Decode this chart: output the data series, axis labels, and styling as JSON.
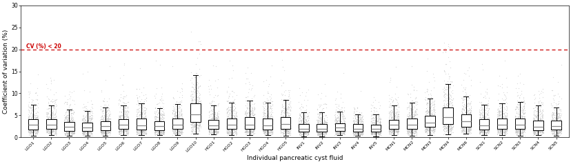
{
  "categories": [
    "LGO1",
    "LGO2",
    "LGO3",
    "LGO4",
    "LGO5",
    "LGO6",
    "LGO7",
    "LGO8",
    "LGO9",
    "LGO10",
    "HGO1",
    "HGO2",
    "HGO3",
    "HGO4",
    "HGO5",
    "INV1",
    "INV2",
    "INV3",
    "INV4",
    "INV5",
    "MCN1",
    "MCN2",
    "MCN3",
    "MCN4",
    "MCN6",
    "SCN1",
    "SCN2",
    "SCN3",
    "SCN4",
    "SCN5"
  ],
  "cv_threshold": 20,
  "ylabel": "Coefficient of variation (%)",
  "xlabel": "Individual pancreatic cyst fluid",
  "annotation_text": "CV (%) < 20",
  "annotation_color": "#cc0000",
  "ylim": [
    0,
    30
  ],
  "yticks": [
    0,
    5,
    10,
    15,
    20,
    25,
    30
  ],
  "box_facecolor": "white",
  "box_edgecolor": "black",
  "median_color": "#888888",
  "whisker_color": "black",
  "flier_marker": "o",
  "flier_color": "#bbbbbb",
  "background_color": "white",
  "seed": 42,
  "box_params": [
    {
      "q1": 1.5,
      "median": 2.8,
      "q3": 4.2,
      "wl": 0.2,
      "wh": 7.0
    },
    {
      "q1": 1.5,
      "median": 2.8,
      "q3": 4.2,
      "wl": 0.2,
      "wh": 7.0
    },
    {
      "q1": 1.2,
      "median": 2.2,
      "q3": 3.5,
      "wl": 0.1,
      "wh": 6.5
    },
    {
      "q1": 1.2,
      "median": 2.2,
      "q3": 3.8,
      "wl": 0.1,
      "wh": 6.0
    },
    {
      "q1": 1.5,
      "median": 2.5,
      "q3": 4.0,
      "wl": 0.2,
      "wh": 7.0
    },
    {
      "q1": 1.5,
      "median": 2.8,
      "q3": 4.2,
      "wl": 0.2,
      "wh": 7.0
    },
    {
      "q1": 1.8,
      "median": 2.8,
      "q3": 4.5,
      "wl": 0.3,
      "wh": 7.5
    },
    {
      "q1": 1.5,
      "median": 2.5,
      "q3": 4.0,
      "wl": 0.2,
      "wh": 7.0
    },
    {
      "q1": 1.8,
      "median": 3.0,
      "q3": 4.8,
      "wl": 0.3,
      "wh": 8.0
    },
    {
      "q1": 3.0,
      "median": 5.2,
      "q3": 7.5,
      "wl": 1.0,
      "wh": 10.5
    },
    {
      "q1": 1.5,
      "median": 2.8,
      "q3": 4.2,
      "wl": 0.2,
      "wh": 7.0
    },
    {
      "q1": 1.8,
      "median": 3.0,
      "q3": 4.5,
      "wl": 0.3,
      "wh": 7.5
    },
    {
      "q1": 1.8,
      "median": 3.0,
      "q3": 5.0,
      "wl": 0.3,
      "wh": 8.0
    },
    {
      "q1": 1.5,
      "median": 2.8,
      "q3": 4.2,
      "wl": 0.2,
      "wh": 7.0
    },
    {
      "q1": 1.8,
      "median": 3.0,
      "q3": 4.5,
      "wl": 0.3,
      "wh": 8.0
    },
    {
      "q1": 1.0,
      "median": 2.0,
      "q3": 3.2,
      "wl": 0.1,
      "wh": 5.5
    },
    {
      "q1": 1.0,
      "median": 2.0,
      "q3": 3.2,
      "wl": 0.1,
      "wh": 5.5
    },
    {
      "q1": 1.2,
      "median": 2.2,
      "q3": 3.5,
      "wl": 0.1,
      "wh": 6.0
    },
    {
      "q1": 1.0,
      "median": 2.0,
      "q3": 3.0,
      "wl": 0.1,
      "wh": 5.0
    },
    {
      "q1": 1.0,
      "median": 2.0,
      "q3": 3.2,
      "wl": 0.1,
      "wh": 5.5
    },
    {
      "q1": 1.5,
      "median": 2.8,
      "q3": 4.2,
      "wl": 0.2,
      "wh": 7.0
    },
    {
      "q1": 1.8,
      "median": 3.0,
      "q3": 4.5,
      "wl": 0.3,
      "wh": 7.5
    },
    {
      "q1": 2.0,
      "median": 3.5,
      "q3": 5.2,
      "wl": 0.5,
      "wh": 8.5
    },
    {
      "q1": 3.0,
      "median": 4.5,
      "q3": 6.5,
      "wl": 1.0,
      "wh": 9.5
    },
    {
      "q1": 2.2,
      "median": 3.5,
      "q3": 5.0,
      "wl": 0.8,
      "wh": 8.0
    },
    {
      "q1": 1.5,
      "median": 2.8,
      "q3": 4.2,
      "wl": 0.2,
      "wh": 7.0
    },
    {
      "q1": 1.5,
      "median": 2.8,
      "q3": 4.2,
      "wl": 0.2,
      "wh": 7.0
    },
    {
      "q1": 1.5,
      "median": 2.8,
      "q3": 4.2,
      "wl": 0.2,
      "wh": 7.0
    },
    {
      "q1": 1.5,
      "median": 2.5,
      "q3": 4.0,
      "wl": 0.2,
      "wh": 7.0
    },
    {
      "q1": 1.5,
      "median": 2.5,
      "q3": 4.0,
      "wl": 0.2,
      "wh": 7.0
    }
  ]
}
